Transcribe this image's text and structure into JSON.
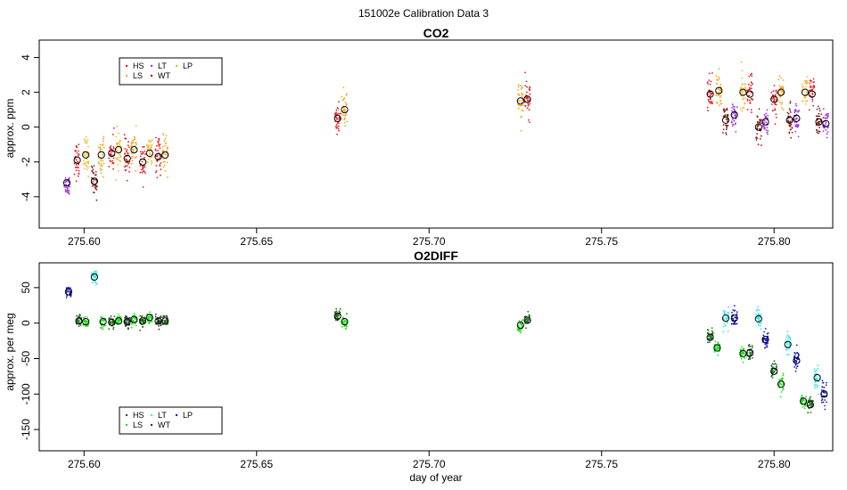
{
  "page": {
    "title": "151002e   Calibration Data 3"
  },
  "chart_data": [
    {
      "type": "scatter",
      "title": "CO2",
      "xlabel": "",
      "ylabel": "approx. ppm",
      "xlim": [
        275.587,
        275.817
      ],
      "ylim": [
        -5.8,
        5.0
      ],
      "xticks": [
        275.6,
        275.65,
        275.7,
        275.75,
        275.8
      ],
      "xtick_labels": [
        "275.60",
        "275.65",
        "275.70",
        "275.75",
        "275.80"
      ],
      "yticks": [
        -4,
        -2,
        0,
        2,
        4
      ],
      "ytick_labels": [
        "-4",
        "-2",
        "0",
        "2",
        "4"
      ],
      "legend": {
        "placement": "top-left",
        "entries": [
          {
            "name": "HS",
            "color": "#e8141a"
          },
          {
            "name": "LS",
            "color": "#f2a21a"
          },
          {
            "name": "LT",
            "color": "#9a30e6"
          },
          {
            "name": "WT",
            "color": "#8b1a1a"
          },
          {
            "name": "LP",
            "color": "#f2b21a"
          }
        ]
      },
      "series_colors": {
        "HS": "#e8141a",
        "LS": "#f2a21a",
        "LT": "#9a30e6",
        "WT": "#8b1a1a",
        "LP": "#f7b728"
      },
      "clusters": [
        {
          "series": "LT",
          "x": 275.595,
          "y": -3.3,
          "spread": 0.6,
          "mean": -3.2
        },
        {
          "series": "HS",
          "x": 275.598,
          "y": -1.9,
          "spread": 1.0,
          "mean": -1.9
        },
        {
          "series": "LP",
          "x": 275.6005,
          "y": -1.6,
          "spread": 1.1,
          "mean": -1.6
        },
        {
          "series": "WT",
          "x": 275.603,
          "y": -3.2,
          "spread": 0.9,
          "mean": -3.1
        },
        {
          "series": "LS",
          "x": 275.605,
          "y": -1.6,
          "spread": 1.1,
          "mean": -1.6
        },
        {
          "series": "HS",
          "x": 275.608,
          "y": -1.5,
          "spread": 1.0,
          "mean": -1.5
        },
        {
          "series": "LP",
          "x": 275.61,
          "y": -1.3,
          "spread": 1.0,
          "mean": -1.3
        },
        {
          "series": "HS",
          "x": 275.6125,
          "y": -1.8,
          "spread": 1.0,
          "mean": -1.8
        },
        {
          "series": "LS",
          "x": 275.6145,
          "y": -1.3,
          "spread": 1.0,
          "mean": -1.3
        },
        {
          "series": "HS",
          "x": 275.617,
          "y": -2.0,
          "spread": 1.0,
          "mean": -2.0
        },
        {
          "series": "LP",
          "x": 275.619,
          "y": -1.5,
          "spread": 1.0,
          "mean": -1.5
        },
        {
          "series": "HS",
          "x": 275.6215,
          "y": -1.7,
          "spread": 1.0,
          "mean": -1.7
        },
        {
          "series": "LS",
          "x": 275.6235,
          "y": -1.6,
          "spread": 1.0,
          "mean": -1.6
        },
        {
          "series": "HS",
          "x": 275.6735,
          "y": 0.5,
          "spread": 1.0,
          "mean": 0.5
        },
        {
          "series": "LS",
          "x": 275.6755,
          "y": 1.0,
          "spread": 1.2,
          "mean": 1.0
        },
        {
          "series": "LS",
          "x": 275.7265,
          "y": 1.5,
          "spread": 1.2,
          "mean": 1.5
        },
        {
          "series": "HS",
          "x": 275.7285,
          "y": 1.6,
          "spread": 1.0,
          "mean": 1.6
        },
        {
          "series": "HS",
          "x": 275.7815,
          "y": 1.9,
          "spread": 1.0,
          "mean": 1.9
        },
        {
          "series": "LS",
          "x": 275.784,
          "y": 2.1,
          "spread": 1.0,
          "mean": 2.1
        },
        {
          "series": "WT",
          "x": 275.786,
          "y": 0.4,
          "spread": 0.8,
          "mean": 0.4
        },
        {
          "series": "LT",
          "x": 275.7885,
          "y": 0.7,
          "spread": 0.8,
          "mean": 0.7
        },
        {
          "series": "LP",
          "x": 275.791,
          "y": 2.0,
          "spread": 1.1,
          "mean": 2.0
        },
        {
          "series": "HS",
          "x": 275.793,
          "y": 1.9,
          "spread": 1.0,
          "mean": 1.9
        },
        {
          "series": "WT",
          "x": 275.7955,
          "y": -0.1,
          "spread": 0.9,
          "mean": 0.0
        },
        {
          "series": "LT",
          "x": 275.7975,
          "y": 0.3,
          "spread": 0.8,
          "mean": 0.3
        },
        {
          "series": "HS",
          "x": 275.8,
          "y": 1.6,
          "spread": 1.0,
          "mean": 1.6
        },
        {
          "series": "LS",
          "x": 275.802,
          "y": 2.0,
          "spread": 1.0,
          "mean": 2.0
        },
        {
          "series": "WT",
          "x": 275.8045,
          "y": 0.4,
          "spread": 0.9,
          "mean": 0.4
        },
        {
          "series": "LT",
          "x": 275.8065,
          "y": 0.5,
          "spread": 0.8,
          "mean": 0.5
        },
        {
          "series": "LP",
          "x": 275.809,
          "y": 2.0,
          "spread": 1.0,
          "mean": 2.0
        },
        {
          "series": "HS",
          "x": 275.811,
          "y": 1.9,
          "spread": 1.0,
          "mean": 1.9
        },
        {
          "series": "WT",
          "x": 275.813,
          "y": 0.3,
          "spread": 0.8,
          "mean": 0.3
        },
        {
          "series": "LT",
          "x": 275.815,
          "y": 0.2,
          "spread": 0.8,
          "mean": 0.2
        }
      ]
    },
    {
      "type": "scatter",
      "title": "O2DIFF",
      "xlabel": "day of year",
      "ylabel": "approx. per meg",
      "xlim": [
        275.587,
        275.817
      ],
      "ylim": [
        -180,
        85
      ],
      "xticks": [
        275.6,
        275.65,
        275.7,
        275.75,
        275.8
      ],
      "xtick_labels": [
        "275.60",
        "275.65",
        "275.70",
        "275.75",
        "275.80"
      ],
      "yticks": [
        -150,
        -100,
        -50,
        0,
        50
      ],
      "ytick_labels": [
        "-150",
        "-100",
        "-50",
        "0",
        "50"
      ],
      "legend": {
        "placement": "bottom-left",
        "entries": [
          {
            "name": "HS",
            "color": "#1a5a1a"
          },
          {
            "name": "LS",
            "color": "#22e022"
          },
          {
            "name": "LT",
            "color": "#33e8e8"
          },
          {
            "name": "WT",
            "color": "#1a3a1a"
          },
          {
            "name": "LP",
            "color": "#1a1ad0"
          }
        ]
      },
      "series_colors": {
        "HS": "#1a6a1a",
        "LS": "#22dd22",
        "LT": "#33e6e6",
        "WT": "#1a3a1a",
        "LP": "#1414c8"
      },
      "clusters": [
        {
          "series": "LP",
          "x": 275.5955,
          "y": 44,
          "spread": 8,
          "mean": 44
        },
        {
          "series": "HS",
          "x": 275.5985,
          "y": 3,
          "spread": 8,
          "mean": 3
        },
        {
          "series": "LS",
          "x": 275.6005,
          "y": 2,
          "spread": 8,
          "mean": 2
        },
        {
          "series": "LT",
          "x": 275.603,
          "y": 65,
          "spread": 8,
          "mean": 65
        },
        {
          "series": "LS",
          "x": 275.6055,
          "y": 2,
          "spread": 10,
          "mean": 2
        },
        {
          "series": "HS",
          "x": 275.608,
          "y": 1,
          "spread": 8,
          "mean": 1
        },
        {
          "series": "LS",
          "x": 275.61,
          "y": 3,
          "spread": 8,
          "mean": 3
        },
        {
          "series": "WT",
          "x": 275.6125,
          "y": 2,
          "spread": 8,
          "mean": 2
        },
        {
          "series": "LS",
          "x": 275.6145,
          "y": 5,
          "spread": 8,
          "mean": 5
        },
        {
          "series": "HS",
          "x": 275.617,
          "y": 3,
          "spread": 8,
          "mean": 3
        },
        {
          "series": "LS",
          "x": 275.619,
          "y": 8,
          "spread": 8,
          "mean": 8
        },
        {
          "series": "WT",
          "x": 275.6215,
          "y": 3,
          "spread": 8,
          "mean": 3
        },
        {
          "series": "HS",
          "x": 275.6235,
          "y": 3,
          "spread": 8,
          "mean": 3
        },
        {
          "series": "HS",
          "x": 275.6735,
          "y": 10,
          "spread": 10,
          "mean": 10
        },
        {
          "series": "LS",
          "x": 275.6755,
          "y": 2,
          "spread": 9,
          "mean": 2
        },
        {
          "series": "LS",
          "x": 275.7265,
          "y": -3,
          "spread": 9,
          "mean": -3
        },
        {
          "series": "HS",
          "x": 275.7285,
          "y": 4,
          "spread": 9,
          "mean": 4
        },
        {
          "series": "HS",
          "x": 275.7815,
          "y": -20,
          "spread": 12,
          "mean": -20
        },
        {
          "series": "LS",
          "x": 275.7835,
          "y": -35,
          "spread": 10,
          "mean": -35
        },
        {
          "series": "LT",
          "x": 275.786,
          "y": 7,
          "spread": 16,
          "mean": 7
        },
        {
          "series": "LP",
          "x": 275.7885,
          "y": 7,
          "spread": 14,
          "mean": 7
        },
        {
          "series": "LS",
          "x": 275.791,
          "y": -43,
          "spread": 12,
          "mean": -43
        },
        {
          "series": "HS",
          "x": 275.793,
          "y": -42,
          "spread": 12,
          "mean": -42
        },
        {
          "series": "LT",
          "x": 275.7955,
          "y": 6,
          "spread": 16,
          "mean": 6
        },
        {
          "series": "LP",
          "x": 275.7975,
          "y": -23,
          "spread": 14,
          "mean": -23
        },
        {
          "series": "HS",
          "x": 275.8,
          "y": -68,
          "spread": 12,
          "mean": -68
        },
        {
          "series": "LS",
          "x": 275.802,
          "y": -86,
          "spread": 12,
          "mean": -86
        },
        {
          "series": "LT",
          "x": 275.804,
          "y": -30,
          "spread": 14,
          "mean": -30
        },
        {
          "series": "LP",
          "x": 275.8065,
          "y": -53,
          "spread": 14,
          "mean": -53
        },
        {
          "series": "LS",
          "x": 275.8085,
          "y": -110,
          "spread": 12,
          "mean": -110
        },
        {
          "series": "HS",
          "x": 275.8105,
          "y": -115,
          "spread": 12,
          "mean": -115
        },
        {
          "series": "LT",
          "x": 275.8125,
          "y": -77,
          "spread": 14,
          "mean": -77
        },
        {
          "series": "LP",
          "x": 275.8145,
          "y": -100,
          "spread": 18,
          "mean": -100
        }
      ]
    }
  ]
}
